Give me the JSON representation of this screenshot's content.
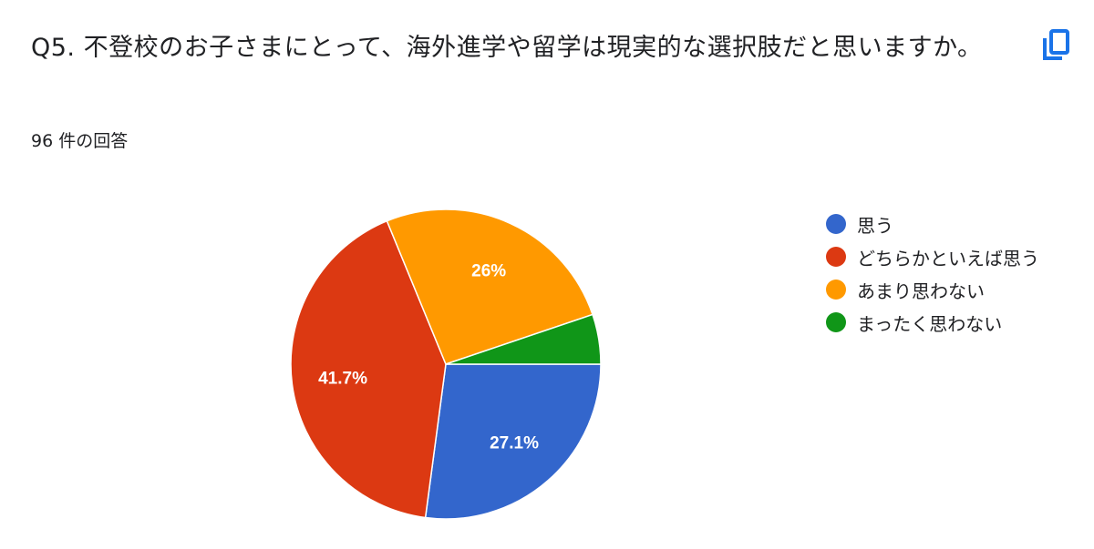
{
  "question": {
    "title": "Q5. 不登校のお子さまにとって、海外進学や留学は現実的な選択肢だと思いますか。",
    "response_count": "96 件の回答",
    "copy_icon": "copy-icon"
  },
  "colors": {
    "accent": "#1a73e8"
  },
  "chart_data": {
    "type": "pie",
    "categories": [
      "思う",
      "どちらかといえば思う",
      "あまり思わない",
      "まったく思わない"
    ],
    "values": [
      27.1,
      41.7,
      26.0,
      5.2
    ],
    "data_labels": [
      "27.1%",
      "41.7%",
      "26%",
      ""
    ],
    "colors": [
      "#3366cc",
      "#dc3912",
      "#ff9900",
      "#109618"
    ],
    "legend_position": "right",
    "start_angle": "3 o'clock, clockwise"
  }
}
